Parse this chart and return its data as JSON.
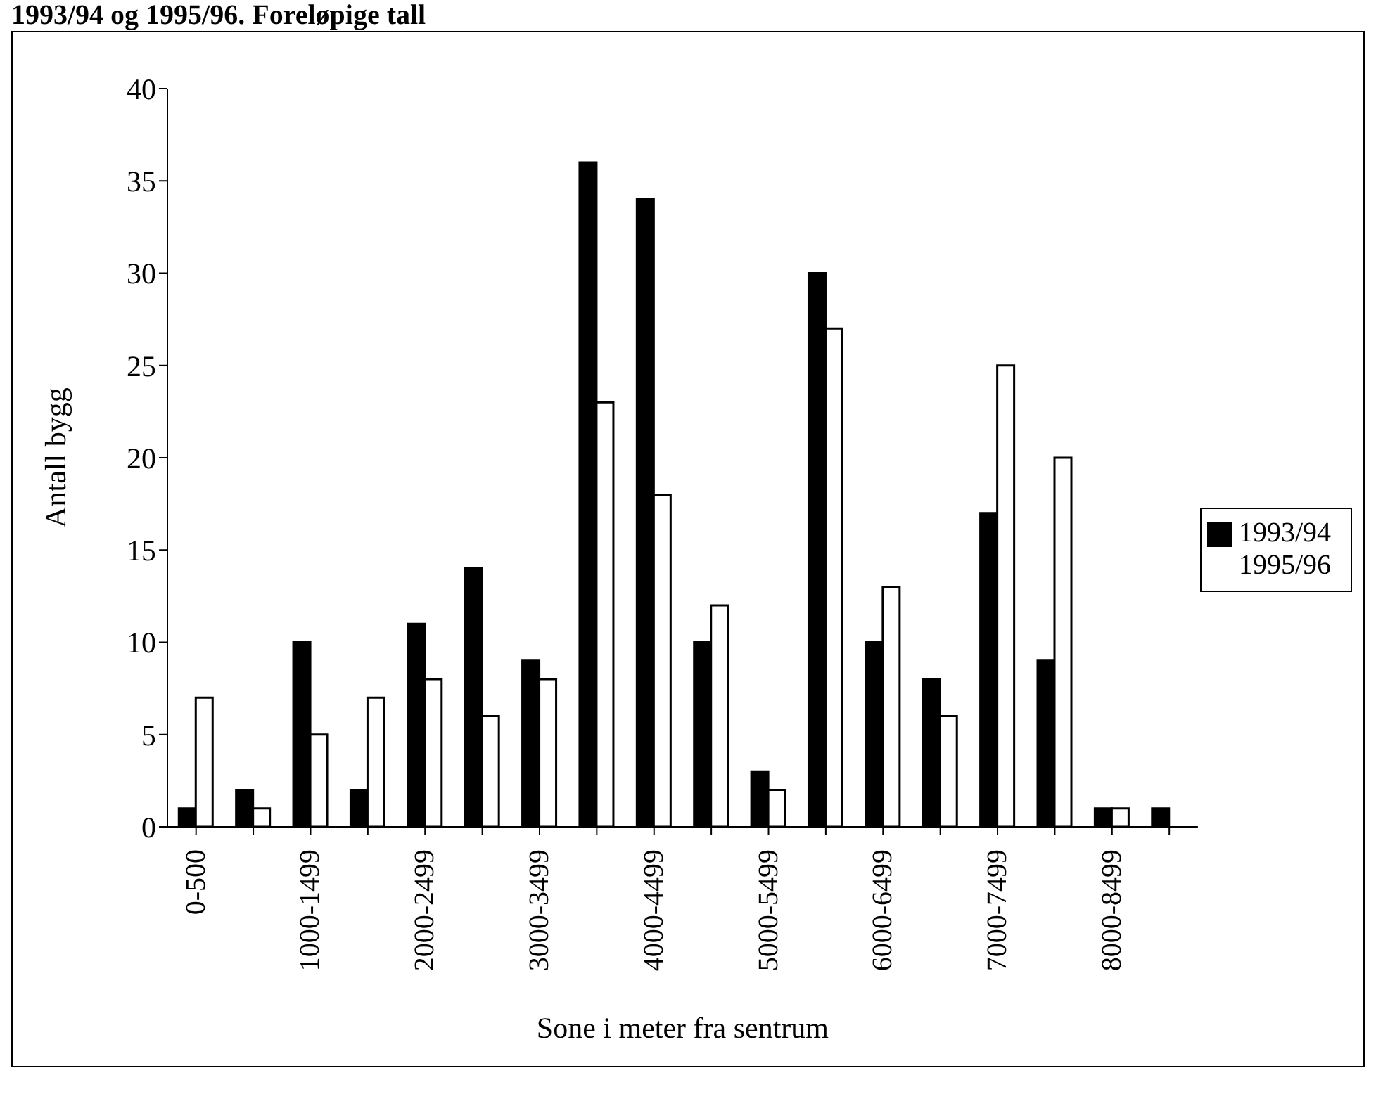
{
  "chart_data": {
    "type": "bar",
    "title": "1993/94 og 1995/96. Foreløpige tall",
    "xlabel": "Sone i meter fra sentrum",
    "ylabel": "Antall bygg",
    "categories": [
      "0-500",
      null,
      "1000-1499",
      null,
      "2000-2499",
      null,
      "3000-3499",
      null,
      "4000-4499",
      null,
      "5000-5499",
      null,
      "6000-6499",
      null,
      "7000-7499",
      null,
      "8000-8499",
      null
    ],
    "series": [
      {
        "name": "1993/94",
        "color": "#000000",
        "values": [
          1,
          2,
          10,
          2,
          11,
          14,
          9,
          36,
          34,
          10,
          3,
          30,
          10,
          8,
          17,
          9,
          1,
          1
        ]
      },
      {
        "name": "1995/96",
        "color": "#ffffff",
        "values": [
          7,
          1,
          5,
          7,
          8,
          6,
          8,
          23,
          18,
          12,
          2,
          27,
          13,
          6,
          25,
          20,
          1,
          0
        ]
      }
    ],
    "ylim": [
      0,
      40
    ],
    "yticks": [
      0,
      5,
      10,
      15,
      20,
      25,
      30,
      35,
      40
    ],
    "grid": false,
    "legend": "right"
  }
}
